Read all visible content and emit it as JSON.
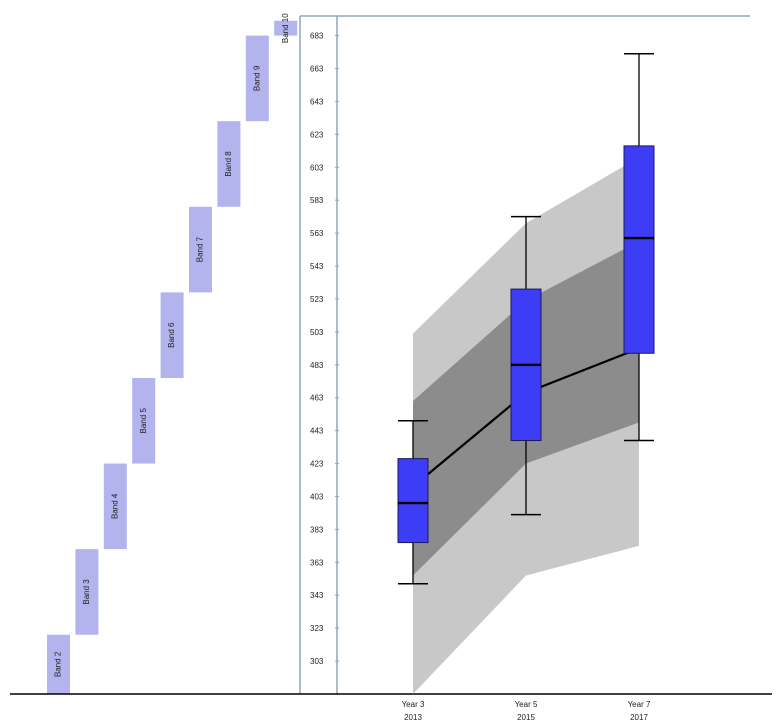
{
  "chart_data": {
    "type": "box",
    "categories": [
      {
        "line1": "Year 3",
        "line2": "2013"
      },
      {
        "line1": "Year 5",
        "line2": "2015"
      },
      {
        "line1": "Year 7",
        "line2": "2017"
      }
    ],
    "y_ticks": [
      303,
      323,
      343,
      363,
      383,
      403,
      423,
      443,
      463,
      483,
      503,
      523,
      543,
      563,
      583,
      603,
      623,
      643,
      663,
      683
    ],
    "ylim": [
      283,
      692
    ],
    "boxes": [
      {
        "whisker_low": 350,
        "q1": 375,
        "median": 399,
        "q3": 426,
        "whisker_high": 449
      },
      {
        "whisker_low": 392,
        "q1": 437,
        "median": 483,
        "q3": 529,
        "whisker_high": 573
      },
      {
        "whisker_low": 437,
        "q1": 490,
        "median": 560,
        "q3": 616,
        "whisker_high": 672
      }
    ],
    "mean_line": [
      409,
      466,
      493
    ],
    "bands": {
      "outer_low": [
        283,
        355,
        373
      ],
      "outer_high": [
        502,
        569,
        609
      ],
      "inner_low": [
        355,
        423,
        448
      ],
      "inner_high": [
        461,
        522,
        558
      ]
    },
    "naplan_bands": [
      {
        "label": "Band 2",
        "low": 283,
        "high": 319
      },
      {
        "label": "Band 3",
        "low": 319,
        "high": 371
      },
      {
        "label": "Band 4",
        "low": 371,
        "high": 423
      },
      {
        "label": "Band 5",
        "low": 423,
        "high": 475
      },
      {
        "label": "Band 6",
        "low": 475,
        "high": 527
      },
      {
        "label": "Band 7",
        "low": 527,
        "high": 579
      },
      {
        "label": "Band 8",
        "low": 579,
        "high": 631
      },
      {
        "label": "Band 9",
        "low": 631,
        "high": 683
      },
      {
        "label": "Band 10",
        "low": 683,
        "high": 692
      }
    ],
    "colors": {
      "box_fill": "#3d3df5",
      "box_stroke": "#1a1a5c",
      "outer_band": "#c8c8c8",
      "inner_band": "#8c8c8c",
      "naplan_band": "#b3b3ee",
      "axis": "#8fa6c0"
    }
  }
}
